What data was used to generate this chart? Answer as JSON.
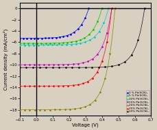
{
  "title": "",
  "xlabel": "Voltage (V)",
  "ylabel": "Current density (mA/cm²)",
  "xlim": [
    -0.1,
    0.7
  ],
  "ylim": [
    -19,
    1
  ],
  "xticks": [
    -0.1,
    0.0,
    0.1,
    0.2,
    0.3,
    0.4,
    0.5,
    0.6,
    0.7
  ],
  "yticks": [
    0,
    -2,
    -4,
    -6,
    -8,
    -10,
    -12,
    -14,
    -16,
    -18
  ],
  "background_color": "#d8d0c0",
  "series": [
    {
      "label": "0 % Pb(SCN)₂",
      "color": "#0000ff",
      "jsc": -5.3,
      "voc": 0.32,
      "n": 2.2
    },
    {
      "label": "5 % Pb(SCN)₂",
      "color": "#00cc00",
      "jsc": -6.2,
      "voc": 0.4,
      "n": 2.2
    },
    {
      "label": "10% Pb(SCN)₂",
      "color": "#00cccc",
      "jsc": -6.5,
      "voc": 0.44,
      "n": 2.2
    },
    {
      "label": "15% Pb(SCN)₂",
      "color": "#cc00cc",
      "jsc": -10.0,
      "voc": 0.46,
      "n": 2.0
    },
    {
      "label": "20% Pb(SCN)₂",
      "color": "#888800",
      "jsc": -18.0,
      "voc": 0.48,
      "n": 2.0
    },
    {
      "label": "25% Pb(SCN)₂",
      "color": "#ff0000",
      "jsc": -13.8,
      "voc": 0.46,
      "n": 2.0
    },
    {
      "label": "30% Pb(SCN)₂",
      "color": "#111111",
      "jsc": -10.5,
      "voc": 0.66,
      "n": 2.0
    }
  ]
}
